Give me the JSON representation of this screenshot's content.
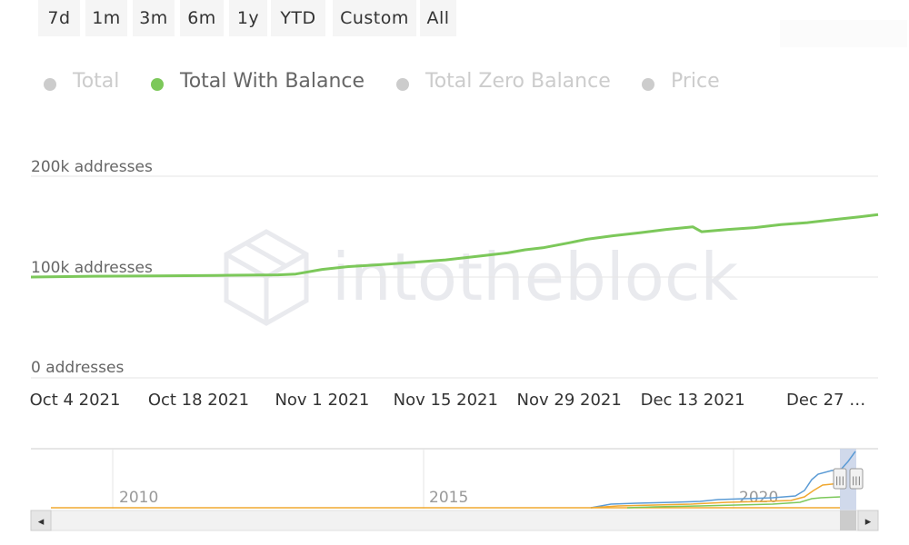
{
  "range_selector": {
    "buttons": [
      {
        "label": "7d"
      },
      {
        "label": "1m"
      },
      {
        "label": "3m"
      },
      {
        "label": "6m"
      },
      {
        "label": "1y"
      },
      {
        "label": "YTD"
      },
      {
        "label": "Custom"
      },
      {
        "label": "All"
      }
    ]
  },
  "legend": {
    "items": [
      {
        "label": "Total",
        "color": "#cccccc",
        "text_color": "#cccccc",
        "active": false
      },
      {
        "label": "Total With Balance",
        "color": "#7cc85a",
        "text_color": "#666666",
        "active": true
      },
      {
        "label": "Total Zero Balance",
        "color": "#cccccc",
        "text_color": "#cccccc",
        "active": false
      },
      {
        "label": "Price",
        "color": "#cccccc",
        "text_color": "#cccccc",
        "active": false
      }
    ]
  },
  "watermark": {
    "text": "intotheblock"
  },
  "chart_data": {
    "type": "line",
    "x_start": "2021-09-29",
    "x_end": "2022-01-03",
    "ylim": [
      0,
      200000
    ],
    "y_ticks": [
      {
        "value": 0,
        "label": "0 addresses"
      },
      {
        "value": 100000,
        "label": "100k addresses"
      },
      {
        "value": 200000,
        "label": "200k addresses"
      }
    ],
    "x_ticks": [
      {
        "date": "2021-10-04",
        "label": "Oct 4 2021"
      },
      {
        "date": "2021-10-18",
        "label": "Oct 18 2021"
      },
      {
        "date": "2021-11-01",
        "label": "Nov 1 2021"
      },
      {
        "date": "2021-11-15",
        "label": "Nov 15 2021"
      },
      {
        "date": "2021-11-29",
        "label": "Nov 29 2021"
      },
      {
        "date": "2021-12-13",
        "label": "Dec 13 2021"
      },
      {
        "date": "2021-12-27",
        "label": "Dec 27 …"
      }
    ],
    "grid": true,
    "series": [
      {
        "name": "Total With Balance",
        "color": "#7cc85a",
        "points": [
          [
            "2021-09-29",
            100000
          ],
          [
            "2021-10-06",
            100800
          ],
          [
            "2021-10-13",
            101200
          ],
          [
            "2021-10-20",
            101600
          ],
          [
            "2021-10-27",
            102200
          ],
          [
            "2021-10-29",
            103000
          ],
          [
            "2021-11-01",
            107600
          ],
          [
            "2021-11-04",
            110400
          ],
          [
            "2021-11-07",
            112000
          ],
          [
            "2021-11-11",
            114400
          ],
          [
            "2021-11-15",
            117000
          ],
          [
            "2021-11-19",
            121000
          ],
          [
            "2021-11-22",
            124000
          ],
          [
            "2021-11-24",
            127000
          ],
          [
            "2021-11-26",
            129000
          ],
          [
            "2021-11-29",
            134000
          ],
          [
            "2021-12-01",
            137500
          ],
          [
            "2021-12-04",
            141000
          ],
          [
            "2021-12-07",
            144000
          ],
          [
            "2021-12-10",
            147200
          ],
          [
            "2021-12-13",
            149800
          ],
          [
            "2021-12-14",
            145000
          ],
          [
            "2021-12-17",
            147200
          ],
          [
            "2021-12-20",
            149000
          ],
          [
            "2021-12-23",
            152000
          ],
          [
            "2021-12-26",
            154000
          ],
          [
            "2021-12-29",
            157000
          ],
          [
            "2022-01-01",
            159800
          ],
          [
            "2022-01-03",
            162000
          ]
        ]
      }
    ]
  },
  "navigator": {
    "year_labels": [
      "2010",
      "2015",
      "2020"
    ],
    "series": [
      {
        "name": "Total",
        "color": "#5b9bd5"
      },
      {
        "name": "Total With Balance",
        "color": "#7cc85a"
      },
      {
        "name": "Total Zero Balance",
        "color": "#f0a830"
      }
    ],
    "scroll_left": "◂",
    "scroll_right": "▸",
    "handle_grip": "|||"
  }
}
